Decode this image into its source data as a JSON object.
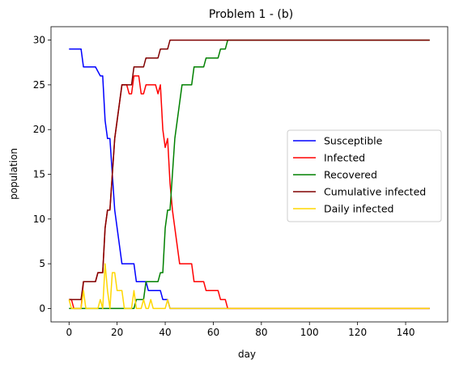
{
  "chart_data": {
    "type": "line",
    "title": "Problem 1 - (b)",
    "xlabel": "day",
    "ylabel": "population",
    "xlim": [
      -7.5,
      157.5
    ],
    "ylim": [
      -1.5,
      31.5
    ],
    "xticks": [
      0,
      20,
      40,
      60,
      80,
      100,
      120,
      140
    ],
    "yticks": [
      0,
      5,
      10,
      15,
      20,
      25,
      30
    ],
    "grid": false,
    "legend_position": "center-right",
    "series": [
      {
        "name": "Susceptible",
        "color": "#0000ff",
        "points": [
          [
            0,
            29
          ],
          [
            5,
            29
          ],
          [
            6,
            27
          ],
          [
            11,
            27
          ],
          [
            13,
            26
          ],
          [
            14,
            26
          ],
          [
            15,
            21
          ],
          [
            16,
            19
          ],
          [
            17,
            19
          ],
          [
            18,
            15
          ],
          [
            19,
            11
          ],
          [
            20,
            9
          ],
          [
            21,
            7
          ],
          [
            22,
            5
          ],
          [
            23,
            5
          ],
          [
            27,
            5
          ],
          [
            28,
            3
          ],
          [
            32,
            3
          ],
          [
            33,
            2
          ],
          [
            38,
            2
          ],
          [
            39,
            1
          ],
          [
            41,
            1
          ],
          [
            42,
            0
          ],
          [
            150,
            0
          ]
        ]
      },
      {
        "name": "Infected",
        "color": "#ff0000",
        "points": [
          [
            0,
            1
          ],
          [
            1,
            1
          ],
          [
            2,
            0
          ],
          [
            5,
            0
          ],
          [
            6,
            3
          ],
          [
            11,
            3
          ],
          [
            12,
            4
          ],
          [
            14,
            4
          ],
          [
            15,
            9
          ],
          [
            16,
            11
          ],
          [
            17,
            11
          ],
          [
            18,
            15
          ],
          [
            19,
            19
          ],
          [
            20,
            21
          ],
          [
            21,
            23
          ],
          [
            22,
            25
          ],
          [
            24,
            25
          ],
          [
            25,
            24
          ],
          [
            26,
            24
          ],
          [
            27,
            26
          ],
          [
            29,
            26
          ],
          [
            30,
            24
          ],
          [
            31,
            24
          ],
          [
            32,
            25
          ],
          [
            36,
            25
          ],
          [
            37,
            24
          ],
          [
            38,
            25
          ],
          [
            39,
            20
          ],
          [
            40,
            18
          ],
          [
            41,
            19
          ],
          [
            42,
            14
          ],
          [
            43,
            11
          ],
          [
            44,
            9
          ],
          [
            45,
            7
          ],
          [
            46,
            5
          ],
          [
            51,
            5
          ],
          [
            52,
            3
          ],
          [
            56,
            3
          ],
          [
            57,
            2
          ],
          [
            62,
            2
          ],
          [
            63,
            1
          ],
          [
            65,
            1
          ],
          [
            66,
            0
          ],
          [
            150,
            0
          ]
        ]
      },
      {
        "name": "Recovered",
        "color": "#008000",
        "points": [
          [
            0,
            0
          ],
          [
            27,
            0
          ],
          [
            28,
            1
          ],
          [
            31,
            1
          ],
          [
            32,
            3
          ],
          [
            37,
            3
          ],
          [
            38,
            4
          ],
          [
            39,
            4
          ],
          [
            40,
            9
          ],
          [
            41,
            11
          ],
          [
            42,
            11
          ],
          [
            43,
            15
          ],
          [
            44,
            19
          ],
          [
            45,
            21
          ],
          [
            46,
            23
          ],
          [
            47,
            25
          ],
          [
            51,
            25
          ],
          [
            52,
            27
          ],
          [
            56,
            27
          ],
          [
            57,
            28
          ],
          [
            62,
            28
          ],
          [
            63,
            29
          ],
          [
            65,
            29
          ],
          [
            66,
            30
          ],
          [
            150,
            30
          ]
        ]
      },
      {
        "name": "Cumulative infected",
        "color": "#800000",
        "points": [
          [
            0,
            1
          ],
          [
            5,
            1
          ],
          [
            6,
            3
          ],
          [
            11,
            3
          ],
          [
            12,
            4
          ],
          [
            14,
            4
          ],
          [
            15,
            9
          ],
          [
            16,
            11
          ],
          [
            17,
            11
          ],
          [
            18,
            15
          ],
          [
            19,
            19
          ],
          [
            20,
            21
          ],
          [
            21,
            23
          ],
          [
            22,
            25
          ],
          [
            26,
            25
          ],
          [
            27,
            27
          ],
          [
            31,
            27
          ],
          [
            32,
            28
          ],
          [
            37,
            28
          ],
          [
            38,
            29
          ],
          [
            41,
            29
          ],
          [
            42,
            30
          ],
          [
            150,
            30
          ]
        ]
      },
      {
        "name": "Daily infected",
        "color": "#ffd700",
        "points": [
          [
            0,
            1
          ],
          [
            1,
            0
          ],
          [
            5,
            0
          ],
          [
            6,
            2
          ],
          [
            7,
            0
          ],
          [
            12,
            0
          ],
          [
            13,
            1
          ],
          [
            14,
            0
          ],
          [
            15,
            5
          ],
          [
            16,
            2
          ],
          [
            17,
            0
          ],
          [
            18,
            4
          ],
          [
            19,
            4
          ],
          [
            20,
            2
          ],
          [
            22,
            2
          ],
          [
            23,
            0
          ],
          [
            26,
            0
          ],
          [
            27,
            2
          ],
          [
            28,
            0
          ],
          [
            30,
            0
          ],
          [
            31,
            1
          ],
          [
            32,
            0
          ],
          [
            33,
            0
          ],
          [
            34,
            1
          ],
          [
            35,
            0
          ],
          [
            40,
            0
          ],
          [
            41,
            1
          ],
          [
            42,
            0
          ],
          [
            150,
            0
          ]
        ]
      }
    ]
  }
}
